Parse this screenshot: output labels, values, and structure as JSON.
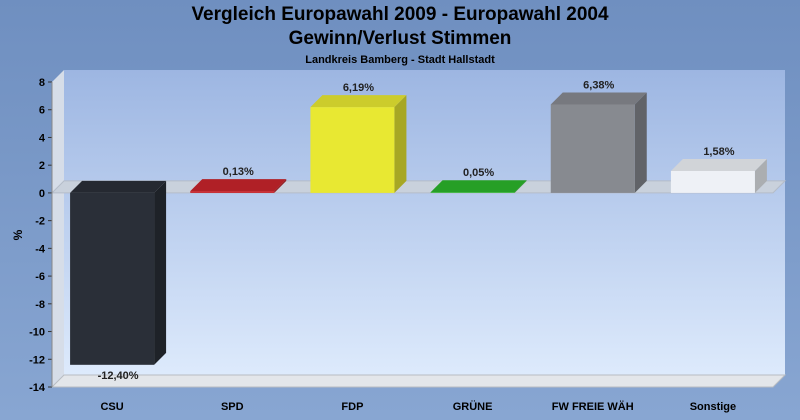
{
  "header": {
    "title": "Vergleich Europawahl 2009 - Europawahl 2004",
    "subtitle": "Gewinn/Verlust Stimmen",
    "region": "Landkreis Bamberg - Stadt Hallstadt"
  },
  "chart_data": {
    "type": "bar",
    "title": "Vergleich Europawahl 2009 - Europawahl 2004",
    "subtitle": "Gewinn/Verlust Stimmen",
    "ylabel": "%",
    "ylim": [
      -14,
      8
    ],
    "yticks": [
      8,
      6,
      4,
      2,
      0,
      -2,
      -4,
      -6,
      -8,
      -10,
      -12,
      -14
    ],
    "categories": [
      "CSU",
      "SPD",
      "FDP",
      "GRÜNE",
      "FW FREIE WÄH",
      "Sonstige"
    ],
    "values": [
      -12.4,
      0.13,
      6.19,
      0.05,
      6.38,
      1.58
    ],
    "labels": [
      "-12,40%",
      "0,13%",
      "6,19%",
      "0,05%",
      "6,38%",
      "1,58%"
    ],
    "colors": [
      "#2a2f38",
      "#c8242b",
      "#e8e832",
      "#2bb52b",
      "#878a90",
      "#eef1f6"
    ],
    "grid": false,
    "legend": "none"
  }
}
